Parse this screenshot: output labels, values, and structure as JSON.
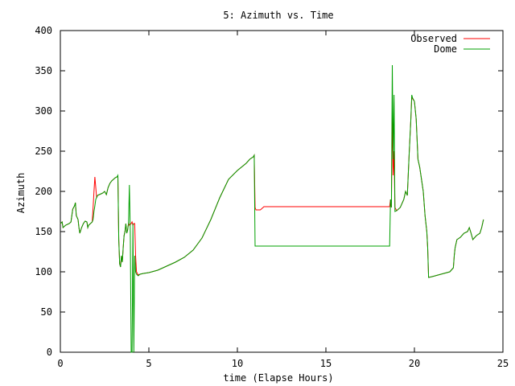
{
  "chart_data": {
    "type": "line",
    "title": "5: Azimuth vs. Time",
    "xlabel": "time (Elapse Hours)",
    "ylabel": "Azimuth",
    "xlim": [
      0,
      25
    ],
    "ylim": [
      0,
      400
    ],
    "xticks": [
      0,
      5,
      10,
      15,
      20,
      25
    ],
    "yticks": [
      0,
      50,
      100,
      150,
      200,
      250,
      300,
      350,
      400
    ],
    "grid": false,
    "legend_position": "top-right",
    "series": [
      {
        "name": "Observed",
        "color": "#ff0000",
        "points": [
          [
            0.0,
            160
          ],
          [
            0.1,
            162
          ],
          [
            0.15,
            155
          ],
          [
            0.3,
            158
          ],
          [
            0.5,
            160
          ],
          [
            0.6,
            162
          ],
          [
            0.7,
            178
          ],
          [
            0.8,
            182
          ],
          [
            0.85,
            186
          ],
          [
            0.9,
            170
          ],
          [
            1.0,
            165
          ],
          [
            1.05,
            155
          ],
          [
            1.1,
            148
          ],
          [
            1.2,
            155
          ],
          [
            1.3,
            160
          ],
          [
            1.4,
            163
          ],
          [
            1.5,
            162
          ],
          [
            1.55,
            155
          ],
          [
            1.6,
            158
          ],
          [
            1.7,
            160
          ],
          [
            1.8,
            162
          ],
          [
            1.85,
            180
          ],
          [
            1.9,
            200
          ],
          [
            1.95,
            218
          ],
          [
            2.0,
            205
          ],
          [
            2.05,
            192
          ],
          [
            2.1,
            195
          ],
          [
            2.2,
            196
          ],
          [
            2.4,
            198
          ],
          [
            2.5,
            200
          ],
          [
            2.6,
            196
          ],
          [
            2.7,
            205
          ],
          [
            2.8,
            210
          ],
          [
            2.9,
            213
          ],
          [
            3.0,
            215
          ],
          [
            3.1,
            217
          ],
          [
            3.2,
            218
          ],
          [
            3.25,
            219
          ],
          [
            3.3,
            140
          ],
          [
            3.35,
            110
          ],
          [
            3.4,
            106
          ],
          [
            3.45,
            120
          ],
          [
            3.5,
            112
          ],
          [
            3.55,
            130
          ],
          [
            3.6,
            145
          ],
          [
            3.65,
            150
          ],
          [
            3.7,
            160
          ],
          [
            3.75,
            148
          ],
          [
            3.8,
            152
          ],
          [
            3.85,
            160
          ],
          [
            3.9,
            158
          ],
          [
            4.0,
            160
          ],
          [
            4.05,
            162
          ],
          [
            4.1,
            158
          ],
          [
            4.15,
            160
          ],
          [
            4.2,
            160
          ],
          [
            4.25,
            120
          ],
          [
            4.3,
            100
          ],
          [
            4.4,
            96
          ],
          [
            4.5,
            97
          ],
          [
            4.7,
            98
          ],
          [
            5.0,
            99
          ],
          [
            5.5,
            102
          ],
          [
            6.0,
            107
          ],
          [
            6.5,
            112
          ],
          [
            7.0,
            118
          ],
          [
            7.5,
            127
          ],
          [
            8.0,
            142
          ],
          [
            8.5,
            165
          ],
          [
            9.0,
            192
          ],
          [
            9.5,
            215
          ],
          [
            10.0,
            226
          ],
          [
            10.5,
            235
          ],
          [
            10.7,
            240
          ],
          [
            10.9,
            243
          ],
          [
            10.95,
            245
          ],
          [
            11.0,
            180
          ],
          [
            11.05,
            177
          ],
          [
            11.3,
            177
          ],
          [
            11.5,
            181
          ],
          [
            12.0,
            181
          ],
          [
            13.0,
            181
          ],
          [
            14.0,
            181
          ],
          [
            15.0,
            181
          ],
          [
            16.0,
            181
          ],
          [
            17.0,
            181
          ],
          [
            18.0,
            181
          ],
          [
            18.6,
            181
          ],
          [
            18.65,
            190
          ],
          [
            18.7,
            180
          ],
          [
            18.75,
            300
          ],
          [
            18.8,
            220
          ],
          [
            18.85,
            250
          ],
          [
            18.9,
            180
          ],
          [
            19.0,
            176
          ],
          [
            19.2,
            180
          ],
          [
            19.4,
            190
          ],
          [
            19.5,
            200
          ],
          [
            19.6,
            195
          ],
          [
            19.7,
            245
          ],
          [
            19.8,
            290
          ],
          [
            19.85,
            318
          ],
          [
            19.9,
            315
          ],
          [
            20.0,
            312
          ],
          [
            20.1,
            290
          ],
          [
            20.2,
            240
          ],
          [
            20.3,
            230
          ],
          [
            20.4,
            215
          ],
          [
            20.5,
            200
          ],
          [
            20.6,
            170
          ],
          [
            20.7,
            150
          ],
          [
            20.75,
            130
          ],
          [
            20.8,
            93
          ],
          [
            21.0,
            94
          ],
          [
            21.5,
            97
          ],
          [
            22.0,
            100
          ],
          [
            22.2,
            105
          ],
          [
            22.25,
            120
          ],
          [
            22.3,
            130
          ],
          [
            22.4,
            140
          ],
          [
            22.6,
            143
          ],
          [
            22.8,
            148
          ],
          [
            23.0,
            150
          ],
          [
            23.1,
            155
          ],
          [
            23.2,
            148
          ],
          [
            23.3,
            140
          ],
          [
            23.5,
            145
          ],
          [
            23.7,
            148
          ],
          [
            23.8,
            155
          ],
          [
            23.9,
            165
          ]
        ]
      },
      {
        "name": "Dome",
        "color": "#00a000",
        "points": [
          [
            0.0,
            160
          ],
          [
            0.1,
            162
          ],
          [
            0.15,
            155
          ],
          [
            0.3,
            158
          ],
          [
            0.5,
            160
          ],
          [
            0.6,
            162
          ],
          [
            0.7,
            178
          ],
          [
            0.8,
            182
          ],
          [
            0.85,
            186
          ],
          [
            0.9,
            170
          ],
          [
            1.0,
            165
          ],
          [
            1.05,
            155
          ],
          [
            1.1,
            148
          ],
          [
            1.2,
            155
          ],
          [
            1.3,
            160
          ],
          [
            1.4,
            163
          ],
          [
            1.5,
            162
          ],
          [
            1.55,
            155
          ],
          [
            1.6,
            158
          ],
          [
            1.7,
            160
          ],
          [
            1.8,
            162
          ],
          [
            1.85,
            165
          ],
          [
            1.9,
            175
          ],
          [
            1.95,
            182
          ],
          [
            2.0,
            190
          ],
          [
            2.1,
            195
          ],
          [
            2.2,
            196
          ],
          [
            2.4,
            198
          ],
          [
            2.5,
            200
          ],
          [
            2.6,
            196
          ],
          [
            2.7,
            205
          ],
          [
            2.8,
            210
          ],
          [
            2.9,
            213
          ],
          [
            3.0,
            215
          ],
          [
            3.1,
            217
          ],
          [
            3.2,
            218
          ],
          [
            3.25,
            220
          ],
          [
            3.3,
            140
          ],
          [
            3.35,
            110
          ],
          [
            3.4,
            106
          ],
          [
            3.45,
            120
          ],
          [
            3.5,
            112
          ],
          [
            3.55,
            130
          ],
          [
            3.6,
            145
          ],
          [
            3.65,
            150
          ],
          [
            3.7,
            160
          ],
          [
            3.75,
            148
          ],
          [
            3.8,
            152
          ],
          [
            3.85,
            160
          ],
          [
            3.9,
            208
          ],
          [
            3.95,
            150
          ],
          [
            4.0,
            0
          ],
          [
            4.05,
            0
          ],
          [
            4.1,
            160
          ],
          [
            4.15,
            0
          ],
          [
            4.2,
            120
          ],
          [
            4.25,
            100
          ],
          [
            4.3,
            97
          ],
          [
            4.4,
            95
          ],
          [
            4.5,
            97
          ],
          [
            4.7,
            98
          ],
          [
            5.0,
            99
          ],
          [
            5.5,
            102
          ],
          [
            6.0,
            107
          ],
          [
            6.5,
            112
          ],
          [
            7.0,
            118
          ],
          [
            7.5,
            127
          ],
          [
            8.0,
            142
          ],
          [
            8.5,
            165
          ],
          [
            9.0,
            192
          ],
          [
            9.5,
            215
          ],
          [
            10.0,
            226
          ],
          [
            10.5,
            235
          ],
          [
            10.7,
            240
          ],
          [
            10.9,
            243
          ],
          [
            10.95,
            245
          ],
          [
            11.0,
            132
          ],
          [
            12.0,
            132
          ],
          [
            13.0,
            132
          ],
          [
            14.0,
            132
          ],
          [
            15.0,
            132
          ],
          [
            16.0,
            132
          ],
          [
            17.0,
            132
          ],
          [
            18.0,
            132
          ],
          [
            18.6,
            132
          ],
          [
            18.65,
            190
          ],
          [
            18.7,
            180
          ],
          [
            18.75,
            357
          ],
          [
            18.8,
            240
          ],
          [
            18.85,
            320
          ],
          [
            18.9,
            175
          ],
          [
            19.0,
            176
          ],
          [
            19.2,
            180
          ],
          [
            19.4,
            190
          ],
          [
            19.5,
            200
          ],
          [
            19.6,
            195
          ],
          [
            19.7,
            245
          ],
          [
            19.8,
            290
          ],
          [
            19.85,
            320
          ],
          [
            19.9,
            316
          ],
          [
            20.0,
            312
          ],
          [
            20.1,
            290
          ],
          [
            20.2,
            240
          ],
          [
            20.3,
            230
          ],
          [
            20.4,
            215
          ],
          [
            20.5,
            200
          ],
          [
            20.6,
            170
          ],
          [
            20.7,
            150
          ],
          [
            20.75,
            130
          ],
          [
            20.8,
            93
          ],
          [
            21.0,
            94
          ],
          [
            21.5,
            97
          ],
          [
            22.0,
            100
          ],
          [
            22.2,
            105
          ],
          [
            22.25,
            120
          ],
          [
            22.3,
            130
          ],
          [
            22.4,
            140
          ],
          [
            22.6,
            143
          ],
          [
            22.8,
            148
          ],
          [
            23.0,
            150
          ],
          [
            23.1,
            155
          ],
          [
            23.2,
            148
          ],
          [
            23.3,
            140
          ],
          [
            23.5,
            145
          ],
          [
            23.7,
            148
          ],
          [
            23.8,
            155
          ],
          [
            23.9,
            165
          ]
        ]
      }
    ]
  }
}
